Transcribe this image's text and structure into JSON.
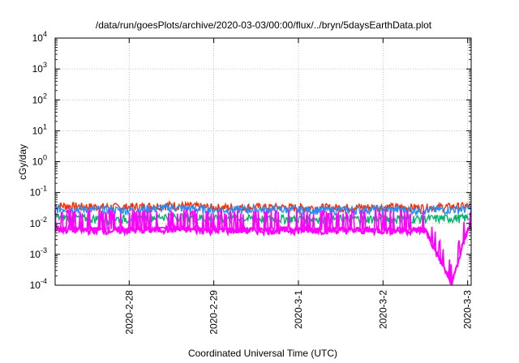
{
  "chart_data": {
    "type": "line",
    "title": "/data/run/goesPlots/archive/2020-03-03/00:00/flux/../bryn/5daysEarthData.plot",
    "xlabel": "Coordinated Universal Time (UTC)",
    "ylabel": "cGy/day",
    "yscale": "log",
    "ylim": [
      0.0001,
      10000
    ],
    "y_ticks": [
      {
        "base": "10",
        "exp": "-4"
      },
      {
        "base": "10",
        "exp": "-3"
      },
      {
        "base": "10",
        "exp": "-2"
      },
      {
        "base": "10",
        "exp": "-1"
      },
      {
        "base": "10",
        "exp": "0"
      },
      {
        "base": "10",
        "exp": "1"
      },
      {
        "base": "10",
        "exp": "2"
      },
      {
        "base": "10",
        "exp": "3"
      },
      {
        "base": "10",
        "exp": "4"
      }
    ],
    "xlim": [
      "2020-02-27T03:00",
      "2020-03-03T01:00"
    ],
    "x_ticks": [
      "2020-2-28",
      "2020-2-29",
      "2020-3-1",
      "2020-3-2",
      "2020-3-3"
    ],
    "x_tick_dates": [
      "2020-02-28",
      "2020-02-29",
      "2020-03-01",
      "2020-03-02",
      "2020-03-03"
    ],
    "grid": true,
    "series": [
      {
        "color": "#ff2a00",
        "baseline": 0.03,
        "x": [
          "2020-02-27T03:00",
          "2020-02-27T12:00",
          "2020-02-28T00:00",
          "2020-02-28T12:00",
          "2020-02-29T00:00",
          "2020-02-29T12:00",
          "2020-03-01T00:00",
          "2020-03-01T12:00",
          "2020-03-02T00:00",
          "2020-03-02T12:00",
          "2020-03-03T00:00"
        ],
        "y": [
          0.035,
          0.032,
          0.031,
          0.036,
          0.03,
          0.031,
          0.03,
          0.03,
          0.031,
          0.03,
          0.033
        ]
      },
      {
        "color": "#1e90ff",
        "baseline": 0.024,
        "x": [
          "2020-02-27T03:00",
          "2020-02-27T12:00",
          "2020-02-28T00:00",
          "2020-02-28T12:00",
          "2020-02-29T00:00",
          "2020-02-29T12:00",
          "2020-03-01T00:00",
          "2020-03-01T12:00",
          "2020-03-02T00:00",
          "2020-03-02T12:00",
          "2020-03-03T00:00"
        ],
        "y": [
          0.028,
          0.026,
          0.025,
          0.03,
          0.025,
          0.026,
          0.025,
          0.025,
          0.026,
          0.025,
          0.027
        ]
      },
      {
        "color": "#00b36b",
        "baseline": 0.013,
        "x": [
          "2020-02-27T03:00",
          "2020-02-27T12:00",
          "2020-02-28T00:00",
          "2020-02-28T12:00",
          "2020-02-29T00:00",
          "2020-02-29T12:00",
          "2020-03-01T00:00",
          "2020-03-01T12:00",
          "2020-03-02T00:00",
          "2020-03-02T12:00",
          "2020-03-03T00:00"
        ],
        "y": [
          0.015,
          0.013,
          0.013,
          0.016,
          0.013,
          0.013,
          0.013,
          0.013,
          0.013,
          0.013,
          0.014
        ]
      },
      {
        "color": "#ff00ff",
        "baseline": 0.0055,
        "x": [
          "2020-02-27T03:00",
          "2020-02-27T12:00",
          "2020-02-28T00:00",
          "2020-02-28T12:00",
          "2020-02-29T00:00",
          "2020-02-29T12:00",
          "2020-03-01T00:00",
          "2020-03-01T12:00",
          "2020-03-02T00:00",
          "2020-03-02T12:00",
          "2020-03-02T19:30",
          "2020-03-03T00:00"
        ],
        "y": [
          0.006,
          0.0055,
          0.0055,
          0.006,
          0.0055,
          0.0055,
          0.0055,
          0.0055,
          0.0055,
          0.0055,
          0.0001,
          0.006
        ]
      }
    ]
  }
}
